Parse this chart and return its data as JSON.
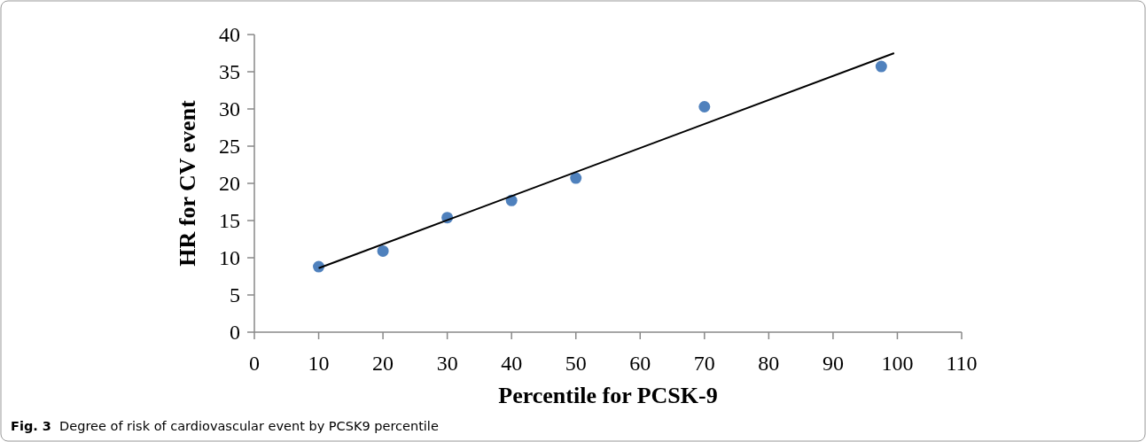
{
  "chart_data": {
    "type": "scatter",
    "xlabel": "Percentile for PCSK-9",
    "ylabel": "HR for CV event",
    "series": [
      {
        "color": "#4f81bd",
        "marker": "circle",
        "x": [
          10,
          20,
          30,
          40,
          50,
          70,
          97.5
        ],
        "values": [
          8.8,
          10.9,
          15.4,
          17.7,
          20.7,
          30.3,
          35.7
        ]
      },
      {
        "type": "line",
        "color": "#000000",
        "x": [
          10,
          99.5
        ],
        "values": [
          8.6,
          37.5
        ]
      }
    ],
    "xlim": [
      0,
      110
    ],
    "xticks": [
      0,
      10,
      20,
      30,
      40,
      50,
      60,
      70,
      80,
      90,
      100,
      110
    ],
    "ylim": [
      0,
      40
    ],
    "yticks": [
      0,
      5,
      10,
      15,
      20,
      25,
      30,
      35,
      40
    ],
    "grid": false,
    "annotations": [
      "Fig. 3  Degree of risk of cardiovascular event by PCSK9 percentile"
    ]
  }
}
